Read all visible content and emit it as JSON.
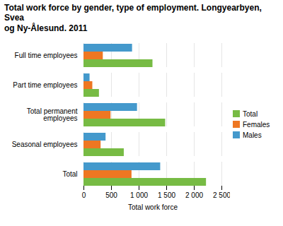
{
  "chart_data": {
    "type": "bar",
    "orientation": "horizontal",
    "title": "Total work force by gender, type of employment. Longyearbyen, Svea\nog Ny-Ålesund. 2011",
    "categories": [
      "Full time employees",
      "Part time employees",
      "Total permanent\nemployees",
      "Seasonal employees",
      "Total"
    ],
    "series": [
      {
        "name": "Total",
        "color": "#77bb44",
        "values": [
          1250,
          280,
          1480,
          730,
          2220
        ]
      },
      {
        "name": "Females",
        "color": "#ee7722",
        "values": [
          350,
          160,
          490,
          310,
          870
        ]
      },
      {
        "name": "Males",
        "color": "#4499cc",
        "values": [
          880,
          110,
          970,
          400,
          1390
        ]
      }
    ],
    "xlabel": "Total work force",
    "xlim": [
      0,
      2500
    ],
    "xticks": [
      0,
      500,
      {
        "value": 1000,
        "label": "1 000"
      },
      {
        "value": 1500,
        "label": "1 500"
      },
      {
        "value": 2000,
        "label": "2 000"
      },
      {
        "value": 2500,
        "label": "2 500"
      }
    ],
    "grid": true,
    "legend": "right"
  }
}
